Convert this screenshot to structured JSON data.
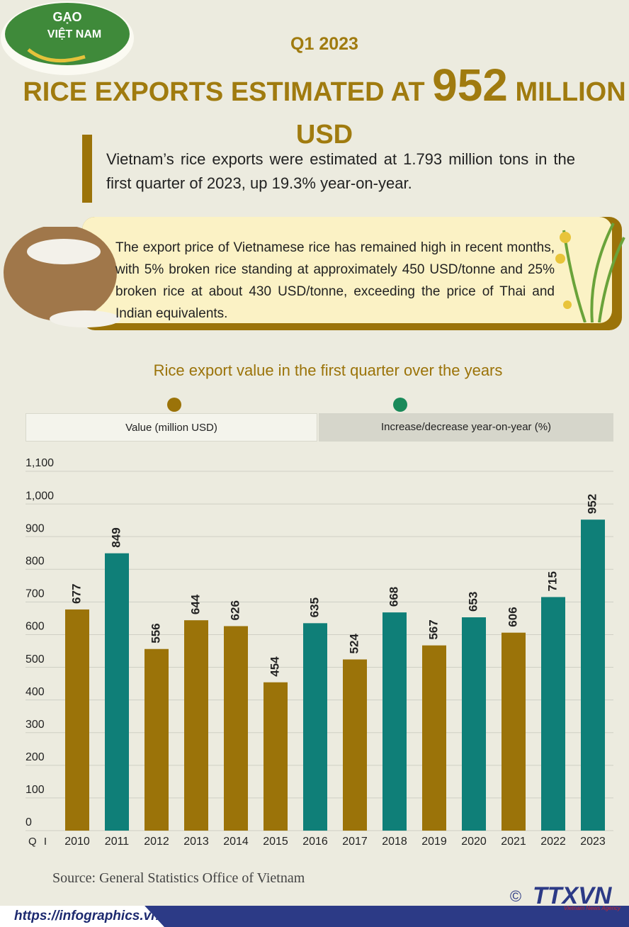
{
  "logo": {
    "line1": "GẠO",
    "line2": "VIỆT NAM"
  },
  "header": {
    "kicker": "Q1 2023",
    "title_start": "RICE EXPORTS ESTIMATED AT",
    "title_number": "952",
    "title_end": "MILLION USD"
  },
  "intro": "Vietnam’s rice exports were estimated at 1.793 million tons in the first quarter of 2023, up 19.3% year-on-year.",
  "price_note": "The export price of Vietnamese rice has remained high in recent months, with 5% broken rice standing at approximately 450 USD/tonne and 25% broken rice at about 430 USD/tonne, exceeding the price of Thai and Indian equivalents.",
  "tabs": [
    "Value (million USD)",
    "Increase/decrease year-on-year (%)"
  ],
  "chart_data": {
    "type": "bar",
    "title": "Rice export value in the first quarter over the years",
    "xlabel": "Q I",
    "categories": [
      "2010",
      "2011",
      "2012",
      "2013",
      "2014",
      "2015",
      "2016",
      "2017",
      "2018",
      "2019",
      "2020",
      "2021",
      "2022",
      "2023"
    ],
    "values": [
      677,
      849,
      556,
      644,
      626,
      454,
      635,
      524,
      668,
      567,
      653,
      606,
      715,
      952
    ],
    "colors": [
      "#9b7309",
      "#0f7f78",
      "#9b7309",
      "#9b7309",
      "#9b7309",
      "#9b7309",
      "#0f7f78",
      "#9b7309",
      "#0f7f78",
      "#9b7309",
      "#0f7f78",
      "#9b7309",
      "#0f7f78",
      "#0f7f78"
    ],
    "ylim": [
      0,
      1100
    ],
    "yticks": [
      0,
      100,
      200,
      300,
      400,
      500,
      600,
      700,
      800,
      900,
      {
        "value": 1000,
        "label": "1,000"
      },
      {
        "value": 1100,
        "label": "1,100"
      }
    ],
    "grid": true
  },
  "source": "Source: General Statistics Office of Vietnam",
  "footer": {
    "url": "https://infographics.vn",
    "copyright": "©",
    "agency": "TTXVN",
    "agency_full": "Vietnam News Agency"
  }
}
